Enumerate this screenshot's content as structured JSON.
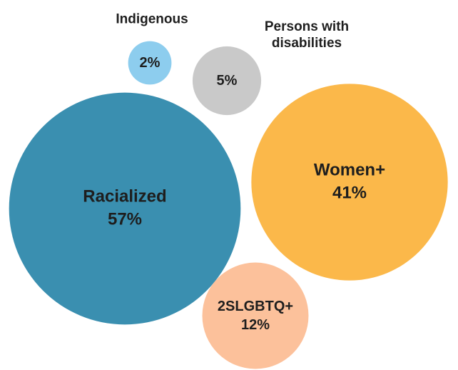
{
  "chart_data": {
    "type": "bubble",
    "categories": [
      "Indigenous",
      "Persons with disabilities",
      "Racialized",
      "Women+",
      "2SLGBTQ+"
    ],
    "values": [
      2,
      5,
      57,
      41,
      12
    ],
    "value_labels": [
      "2%",
      "5%",
      "57%",
      "41%",
      "12%"
    ],
    "colors": [
      "#8dcdee",
      "#c9c9c9",
      "#3a8fb0",
      "#fbb84a",
      "#fcc19b"
    ]
  }
}
